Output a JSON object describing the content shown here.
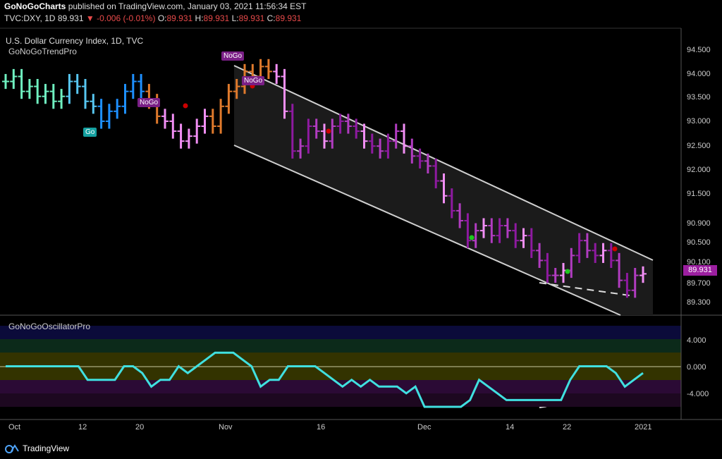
{
  "header": {
    "publisher": "GoNoGoCharts",
    "published_text": "published on TradingView.com, January 03, 2021 11:56:34 EST",
    "symbol": "TVC:DXY, 1D",
    "last": "89.931",
    "change": "-0.006 (-0.01%)",
    "open_label": "O:",
    "open": "89.931",
    "high_label": "H:",
    "high": "89.931",
    "low_label": "L:",
    "low": "89.931",
    "close_label": "C:",
    "close": "89.931"
  },
  "main_pane": {
    "title": "U.S. Dollar Currency Index, 1D, TVC",
    "indicator": "GoNoGoTrendPro",
    "y_ticks": [
      "94.500",
      "94.000",
      "93.500",
      "93.000",
      "92.500",
      "92.000",
      "91.500",
      "90.900",
      "90.500",
      "90.100",
      "89.700",
      "89.300"
    ],
    "price_tag": "89.931",
    "labels": {
      "go": "Go",
      "nogo1": "NoGo",
      "nogo2": "NoGo",
      "nogo3": "NoGo"
    }
  },
  "osc_pane": {
    "title": "GoNoGoOscillatorPro",
    "y_ticks": [
      "4.000",
      "0.000",
      "-4.000"
    ]
  },
  "x_axis": {
    "ticks": [
      "Oct",
      "12",
      "20",
      "Nov",
      "16",
      "Dec",
      "14",
      "22",
      "2021"
    ]
  },
  "footer": {
    "brand": "TradingView"
  },
  "colors": {
    "go_strong": "#1e90ff",
    "go": "#57c6f0",
    "go_weak": "#6ff0c0",
    "amber": "#e07a2c",
    "nogo_weak": "#f28ff5",
    "nogo": "#b13cc0",
    "nogo_strong": "#8e1aa0",
    "osc_line": "#40e0e0",
    "dots_red": "#c00",
    "dots_green": "#1ec81e"
  },
  "chart_data": [
    {
      "type": "ohlc",
      "series_name": "TVC:DXY",
      "y_range": [
        89.1,
        94.8
      ],
      "note_values": "approximate daily closes read from chart",
      "closes": [
        93.8,
        93.9,
        93.6,
        93.7,
        93.5,
        93.6,
        93.4,
        93.5,
        93.8,
        93.7,
        93.4,
        93.3,
        93.0,
        93.2,
        93.3,
        93.6,
        93.8,
        93.6,
        93.4,
        93.1,
        93.0,
        92.8,
        92.6,
        92.7,
        92.9,
        93.1,
        92.9,
        93.3,
        93.6,
        93.7,
        94.0,
        93.9,
        94.1,
        94.0,
        93.9,
        93.2,
        92.4,
        92.5,
        92.9,
        92.8,
        92.6,
        92.9,
        93.0,
        92.9,
        92.8,
        92.6,
        92.5,
        92.4,
        92.6,
        92.8,
        92.5,
        92.3,
        92.2,
        92.1,
        91.8,
        91.5,
        91.2,
        91.0,
        90.6,
        90.8,
        90.9,
        90.7,
        90.9,
        90.8,
        90.6,
        90.7,
        90.4,
        90.2,
        89.9,
        89.9,
        90.0,
        90.3,
        90.6,
        90.4,
        90.3,
        90.4,
        90.2,
        89.8,
        89.6,
        89.9,
        89.931
      ]
    },
    {
      "type": "line",
      "series_name": "GoNoGoOscillatorPro",
      "y_range": [
        -6,
        6
      ],
      "values": [
        0,
        0,
        0,
        0,
        0,
        0,
        0,
        0,
        0,
        -2,
        -2,
        -2,
        -2,
        0,
        0,
        -1,
        -3,
        -2,
        -2,
        0,
        -1,
        0,
        1,
        2,
        2,
        2,
        1,
        0,
        -3,
        -2,
        -2,
        0,
        0,
        0,
        0,
        -1,
        -2,
        -3,
        -2,
        -3,
        -2,
        -3,
        -3,
        -3,
        -4,
        -3,
        -6,
        -6,
        -6,
        -6,
        -6,
        -5,
        -2,
        -3,
        -4,
        -5,
        -5,
        -5,
        -5,
        -5,
        -5,
        -5,
        -2,
        0,
        0,
        0,
        0,
        -1,
        -3,
        -2,
        -1
      ]
    }
  ]
}
